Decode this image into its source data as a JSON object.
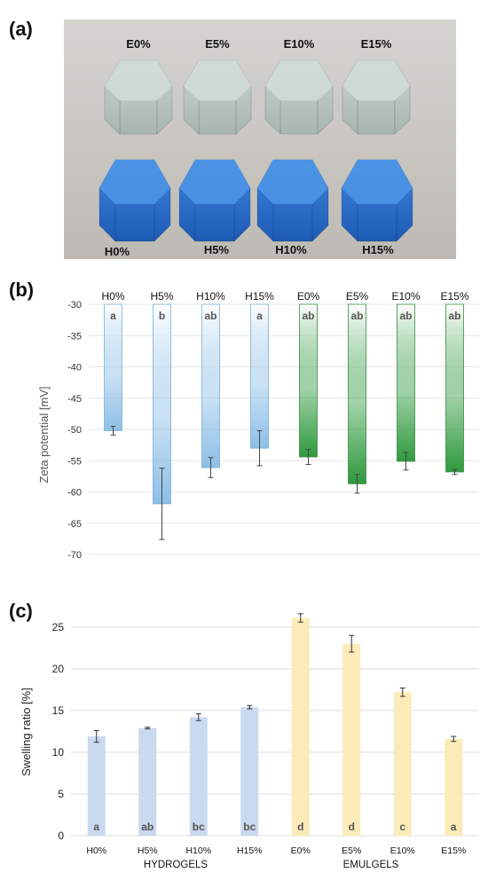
{
  "panels": {
    "a": "(a)",
    "b": "(b)",
    "c": "(c)"
  },
  "photo": {
    "top_row": [
      "E0%",
      "E5%",
      "E10%",
      "E15%"
    ],
    "bottom_row": [
      "H0%",
      "H5%",
      "H10%",
      "H15%"
    ],
    "colors": {
      "background": "#c8c6c2",
      "emulgel": "#b9c6c0",
      "hydrogel": "#2a6fc9"
    }
  },
  "chart_data": [
    {
      "type": "bar",
      "categories": [
        "H0%",
        "H5%",
        "H10%",
        "H15%",
        "E0%",
        "E5%",
        "E10%",
        "E15%"
      ],
      "values": [
        -50.2,
        -61.9,
        -56.1,
        -53.0,
        -54.4,
        -58.7,
        -55.1,
        -56.8
      ],
      "errors": [
        0.7,
        5.7,
        1.6,
        2.8,
        1.2,
        1.5,
        1.4,
        0.4
      ],
      "letters": [
        "a",
        "b",
        "ab",
        "a",
        "ab",
        "ab",
        "ab",
        "ab"
      ],
      "ylabel": "Zeta potential [mV]",
      "xlabel": "",
      "title": "",
      "ylim": [
        -70,
        -30
      ],
      "yticks": [
        -30,
        -35,
        -40,
        -45,
        -50,
        -55,
        -60,
        -65,
        -70
      ],
      "bar_colors": [
        "#8dbfe6",
        "#8dbfe6",
        "#8dbfe6",
        "#8dbfe6",
        "#2f9a3e",
        "#2f9a3e",
        "#2f9a3e",
        "#2f9a3e"
      ],
      "grid": true
    },
    {
      "type": "bar",
      "categories": [
        "H0%",
        "H5%",
        "H10%",
        "H15%",
        "E0%",
        "E5%",
        "E10%",
        "E15%"
      ],
      "values": [
        11.9,
        12.9,
        14.2,
        15.4,
        26.1,
        23.0,
        17.2,
        11.6
      ],
      "errors": [
        0.7,
        0.1,
        0.4,
        0.2,
        0.5,
        1.0,
        0.5,
        0.3
      ],
      "letters": [
        "a",
        "ab",
        "bc",
        "bc",
        "d",
        "d",
        "c",
        "a"
      ],
      "ylabel": "Swelling ratio [%]",
      "xlabel": "",
      "title": "",
      "ylim": [
        0,
        27
      ],
      "yticks": [
        0,
        5,
        10,
        15,
        20,
        25
      ],
      "group_labels": [
        "HYDROGELS",
        "EMULGELS"
      ],
      "bar_colors": [
        "#c9d9ef",
        "#c9d9ef",
        "#c9d9ef",
        "#c9d9ef",
        "#fcebb9",
        "#fcebb9",
        "#fcebb9",
        "#fcebb9"
      ],
      "grid": true
    }
  ]
}
